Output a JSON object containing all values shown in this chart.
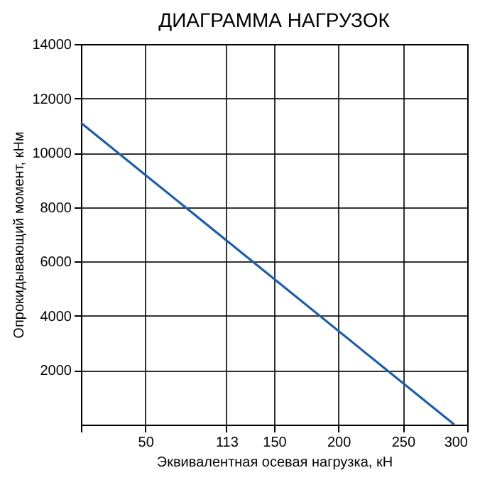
{
  "chart_data": {
    "type": "line",
    "title": "ДИАГРАММА НАГРУЗОК",
    "xlabel": "Эквивалентная осевая нагрузка, кН",
    "ylabel": "Опрокидывающий момент, кНм",
    "x": [
      0,
      290
    ],
    "series": [
      {
        "color": "#1f5fa8",
        "values": [
          11100,
          0
        ]
      }
    ],
    "xlim": [
      0,
      300
    ],
    "xticks": [
      {
        "value": 0,
        "label": null
      },
      50,
      113,
      150,
      200,
      250,
      300
    ],
    "ylim": [
      0,
      14000
    ],
    "yticks": [
      2000,
      4000,
      6000,
      8000,
      10000,
      12000,
      14000
    ],
    "grid": true,
    "marker": "none",
    "line_style": "solid"
  }
}
